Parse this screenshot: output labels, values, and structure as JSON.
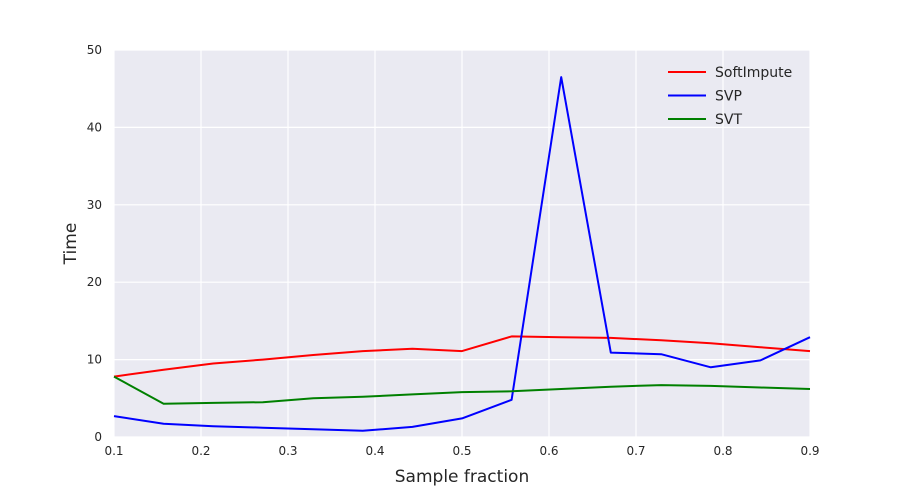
{
  "chart_data": {
    "type": "line",
    "title": "",
    "xlabel": "Sample fraction",
    "ylabel": "Time",
    "xlim": [
      0.1,
      0.9
    ],
    "ylim": [
      0,
      50
    ],
    "xticks": [
      "0.1",
      "0.2",
      "0.3",
      "0.4",
      "0.5",
      "0.6",
      "0.7",
      "0.8",
      "0.9"
    ],
    "yticks": [
      "0",
      "10",
      "20",
      "30",
      "40",
      "50"
    ],
    "grid": true,
    "legend_position": "top-right",
    "x": [
      0.1,
      0.157,
      0.214,
      0.271,
      0.329,
      0.386,
      0.443,
      0.5,
      0.557,
      0.614,
      0.671,
      0.729,
      0.786,
      0.843,
      0.9
    ],
    "series": [
      {
        "name": "SoftImpute",
        "color": "#ff0000",
        "values": [
          7.8,
          8.7,
          9.5,
          10.0,
          10.6,
          11.1,
          11.4,
          11.1,
          13.0,
          12.9,
          12.8,
          12.5,
          12.1,
          11.6,
          11.1
        ]
      },
      {
        "name": "SVP",
        "color": "#0000ff",
        "values": [
          2.7,
          1.7,
          1.4,
          1.2,
          1.0,
          0.8,
          1.3,
          2.4,
          4.8,
          46.5,
          10.9,
          10.7,
          9.0,
          9.9,
          12.9
        ]
      },
      {
        "name": "SVT",
        "color": "#008000",
        "values": [
          7.8,
          4.3,
          4.4,
          4.5,
          5.0,
          5.2,
          5.5,
          5.8,
          5.9,
          6.2,
          6.5,
          6.7,
          6.6,
          6.4,
          6.2
        ]
      }
    ]
  }
}
